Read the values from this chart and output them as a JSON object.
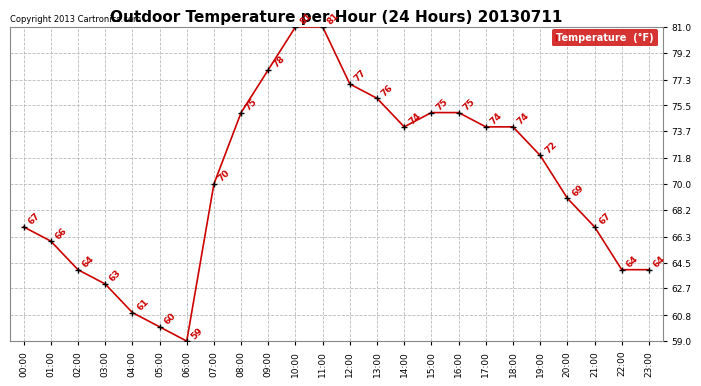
{
  "title": "Outdoor Temperature per Hour (24 Hours) 20130711",
  "copyright": "Copyright 2013 Cartronics.com",
  "legend_label": "Temperature  (°F)",
  "hours": [
    "00:00",
    "01:00",
    "02:00",
    "03:00",
    "04:00",
    "05:00",
    "06:00",
    "07:00",
    "08:00",
    "09:00",
    "10:00",
    "11:00",
    "12:00",
    "13:00",
    "14:00",
    "15:00",
    "16:00",
    "17:00",
    "18:00",
    "19:00",
    "20:00",
    "21:00",
    "22:00",
    "23:00"
  ],
  "temps": [
    67,
    66,
    64,
    63,
    61,
    60,
    59,
    70,
    75,
    78,
    81,
    81,
    77,
    76,
    74,
    75,
    75,
    74,
    74,
    72,
    69,
    67,
    64,
    64
  ],
  "line_color": "#cc0000",
  "marker_color": "#000000",
  "label_color": "#cc0000",
  "bg_color": "#ffffff",
  "grid_color": "#bbbbbb",
  "ylim_min": 59.0,
  "ylim_max": 81.0,
  "yticks": [
    59.0,
    60.8,
    62.7,
    64.5,
    66.3,
    68.2,
    70.0,
    71.8,
    73.7,
    75.5,
    77.3,
    79.2,
    81.0
  ],
  "title_fontsize": 11,
  "label_fontsize": 6.5,
  "tick_fontsize": 6.5,
  "copyright_fontsize": 6,
  "legend_bg": "#cc0000",
  "legend_text_color": "#ffffff",
  "legend_fontsize": 7
}
